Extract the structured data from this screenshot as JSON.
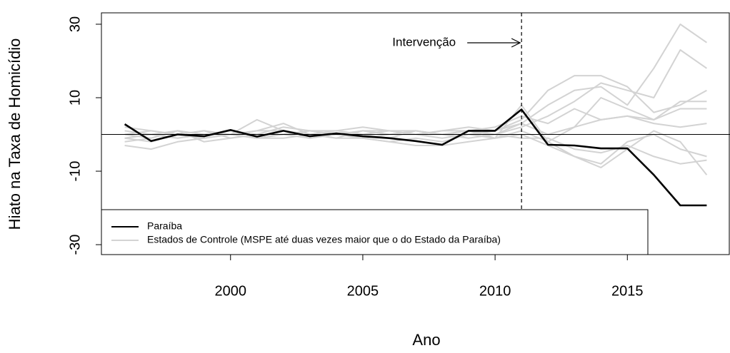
{
  "chart_data": {
    "type": "line",
    "xlabel": "Ano",
    "ylabel": "Hiato na Taxa de Homicídio",
    "annotation": "Intervenção",
    "intervention_x": 2011,
    "legend": "bottomleft",
    "x": [
      1996,
      1997,
      1998,
      1999,
      2000,
      2001,
      2002,
      2003,
      2004,
      2005,
      2006,
      2007,
      2008,
      2009,
      2010,
      2011,
      2012,
      2013,
      2014,
      2015,
      2016,
      2017,
      2018
    ],
    "xlim": [
      1995.12,
      2018.88
    ],
    "xticks": [
      2000,
      2005,
      2010,
      2015
    ],
    "ylim": [
      -32.7,
      33.1
    ],
    "yticks": [
      -30,
      -10,
      10,
      30
    ],
    "series": [
      {
        "name": "Estados de Controle (MSPE até duas vezes maior que o do Estado da Paraíba)",
        "color": "#d3d3d3",
        "values": [
          [
            -1,
            -2,
            0,
            1,
            -1,
            0,
            2,
            1,
            0,
            1,
            0,
            0,
            1,
            2,
            1,
            3,
            8,
            12,
            13,
            8,
            18,
            30,
            25
          ],
          [
            -2,
            -1,
            1,
            0,
            0,
            4,
            1,
            0,
            1,
            0,
            -1,
            1,
            0,
            1,
            0,
            2,
            5,
            9,
            14,
            12,
            10,
            23,
            18
          ],
          [
            0,
            1,
            0,
            -1,
            0,
            1,
            3,
            0,
            -1,
            1,
            0,
            0,
            -1,
            0,
            1,
            4,
            12,
            16,
            16,
            13,
            6,
            8,
            12
          ],
          [
            1,
            0,
            -1,
            0,
            0,
            -1,
            0,
            1,
            0,
            -1,
            0,
            1,
            0,
            0,
            -1,
            1,
            -2,
            2,
            10,
            7,
            4,
            9,
            9
          ],
          [
            -3,
            -4,
            -2,
            -1,
            0,
            -1,
            -1,
            0,
            -1,
            -1,
            -2,
            -3,
            -3,
            -2,
            -1,
            0,
            -3,
            -6,
            -8,
            -2,
            0,
            -4,
            -6
          ],
          [
            -1,
            0,
            1,
            -2,
            -1,
            0,
            0,
            -1,
            0,
            -1,
            -2,
            -1,
            -2,
            0,
            0,
            -1,
            -1,
            -4,
            -5,
            -3,
            -6,
            -8,
            -7
          ],
          [
            2,
            1,
            0,
            1,
            0,
            -1,
            0,
            1,
            1,
            2,
            1,
            0,
            1,
            1,
            -1,
            8,
            -2,
            -6,
            -9,
            -4,
            1,
            -2,
            -11
          ],
          [
            0,
            -1,
            1,
            0,
            1,
            0,
            0,
            1,
            0,
            0,
            1,
            0,
            0,
            1,
            2,
            5,
            3,
            7,
            4,
            5,
            4,
            7,
            7
          ],
          [
            -1,
            0,
            -1,
            0,
            0,
            1,
            1,
            0,
            0,
            1,
            1,
            1,
            0,
            -1,
            0,
            3,
            0,
            2,
            4,
            5,
            3,
            2,
            3
          ]
        ]
      },
      {
        "name": "Paraíba",
        "color": "#000000",
        "values": [
          2.8,
          -1.8,
          0,
          -0.5,
          1.2,
          -0.6,
          1,
          -0.5,
          0.3,
          -0.5,
          -1,
          -1.8,
          -2.8,
          1,
          1,
          6.8,
          -2.8,
          -3,
          -3.8,
          -3.8,
          -11,
          -19.3,
          -19.3
        ]
      }
    ]
  }
}
